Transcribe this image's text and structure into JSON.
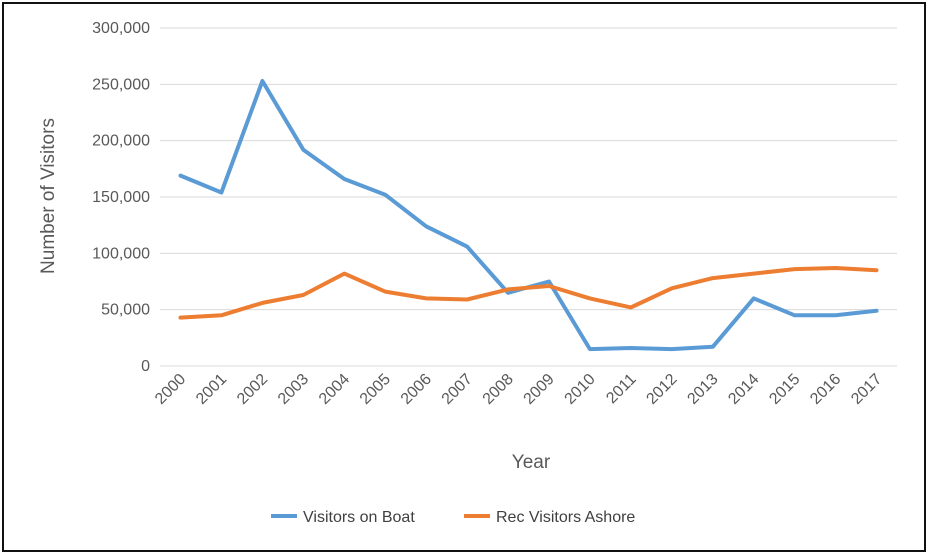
{
  "chart_data": {
    "type": "line",
    "title": "",
    "xlabel": "Year",
    "ylabel": "Number of Visitors",
    "x": [
      "2000",
      "2001",
      "2002",
      "2003",
      "2004",
      "2005",
      "2006",
      "2007",
      "2008",
      "2009",
      "2010",
      "2011",
      "2012",
      "2013",
      "2014",
      "2015",
      "2016",
      "2017"
    ],
    "ylim": [
      0,
      300000
    ],
    "y_ticks": [
      0,
      50000,
      100000,
      150000,
      200000,
      250000,
      300000
    ],
    "y_tick_labels": [
      "0",
      "50,000",
      "100,000",
      "150,000",
      "200,000",
      "250,000",
      "300,000"
    ],
    "grid": true,
    "legend_position": "bottom",
    "series": [
      {
        "name": "Visitors on Boat",
        "color": "#5B9BD5",
        "values": [
          169000,
          154000,
          253000,
          192000,
          166000,
          152000,
          124000,
          106000,
          65000,
          75000,
          15000,
          16000,
          15000,
          17000,
          60000,
          45000,
          45000,
          49000
        ]
      },
      {
        "name": "Rec Visitors Ashore",
        "color": "#ED7D31",
        "values": [
          43000,
          45000,
          56000,
          63000,
          82000,
          66000,
          60000,
          59000,
          68000,
          71000,
          60000,
          52000,
          69000,
          78000,
          82000,
          86000,
          87000,
          85000
        ]
      }
    ]
  }
}
